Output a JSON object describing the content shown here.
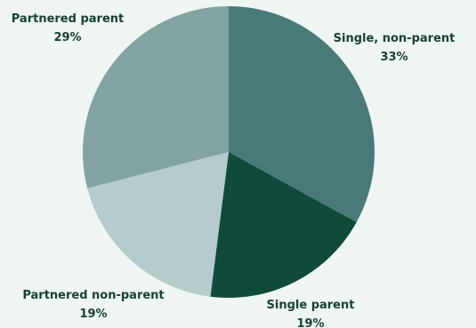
{
  "chart_data": {
    "type": "pie",
    "title": "",
    "slices": [
      {
        "label": "Single, non-parent",
        "value": 33,
        "value_label": "33%",
        "color": "#4a7a78"
      },
      {
        "label": "Single parent",
        "value": 19,
        "value_label": "19%",
        "color": "#104a3a"
      },
      {
        "label": "Partnered non-parent",
        "value": 19,
        "value_label": "19%",
        "color": "#b5cbcc"
      },
      {
        "label": "Partnered parent",
        "value": 29,
        "value_label": "29%",
        "color": "#82a3a2"
      }
    ],
    "start_angle": "12 o'clock",
    "direction": "clockwise",
    "legend": "none",
    "data_labels": "outside"
  }
}
